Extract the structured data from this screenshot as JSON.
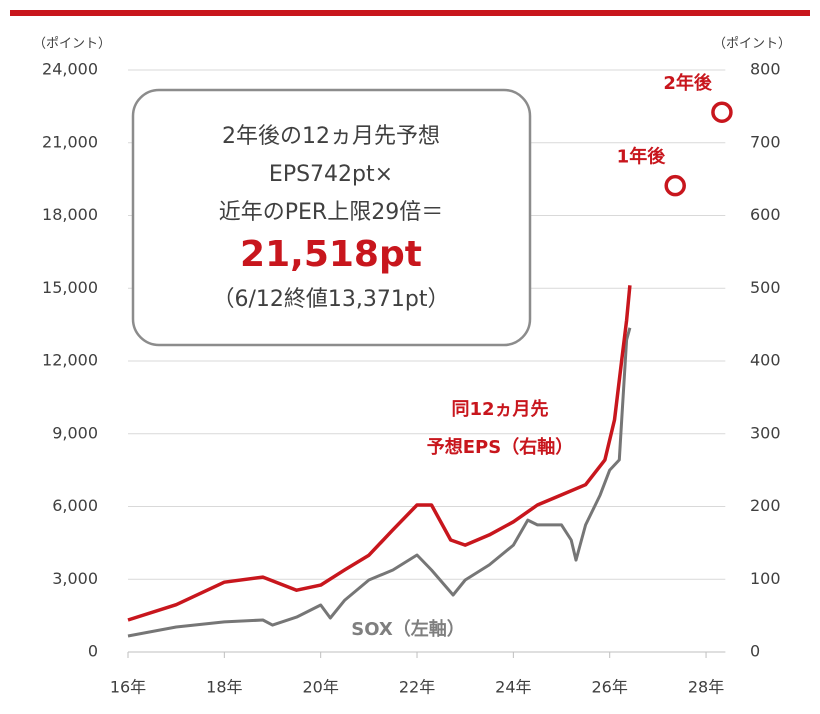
{
  "chart_data": {
    "type": "line",
    "y_unit": "（ポイント）",
    "y2_unit": "（ポイント）",
    "xlim": [
      16,
      28.4
    ],
    "xticks": [
      {
        "value": 16,
        "label": "16年"
      },
      {
        "value": 18,
        "label": "18年"
      },
      {
        "value": 20,
        "label": "20年"
      },
      {
        "value": 22,
        "label": "22年"
      },
      {
        "value": 24,
        "label": "24年"
      },
      {
        "value": 26,
        "label": "26年"
      },
      {
        "value": 28,
        "label": "28年"
      }
    ],
    "ylim": [
      0,
      24000
    ],
    "yticks": [
      0,
      {
        "value": 3000,
        "label": "3,000"
      },
      {
        "value": 6000,
        "label": "6,000"
      },
      {
        "value": 9000,
        "label": "9,000"
      },
      {
        "value": 12000,
        "label": "12,000"
      },
      {
        "value": 15000,
        "label": "15,000"
      },
      {
        "value": 18000,
        "label": "18,000"
      },
      {
        "value": 21000,
        "label": "21,000"
      },
      {
        "value": 24000,
        "label": "24,000"
      }
    ],
    "y2lim": [
      0,
      800
    ],
    "y2ticks": [
      0,
      100,
      200,
      300,
      400,
      500,
      600,
      700,
      800
    ],
    "grid": true,
    "series": [
      {
        "name": [
          "SOX（左軸）"
        ],
        "color": "#767676",
        "axis": "y",
        "x": [
          16.0,
          17.0,
          18.0,
          18.8,
          19.0,
          19.5,
          20.0,
          20.2,
          20.5,
          21.0,
          21.5,
          22.0,
          22.3,
          22.75,
          23.0,
          23.5,
          24.0,
          24.3,
          24.5,
          25.0,
          25.2,
          25.3,
          25.5,
          25.8,
          26.0,
          26.2,
          26.25,
          26.35,
          26.42
        ],
        "values": [
          660,
          1030,
          1240,
          1320,
          1110,
          1440,
          1940,
          1400,
          2140,
          2970,
          3380,
          4000,
          3380,
          2350,
          2970,
          3590,
          4410,
          5440,
          5240,
          5240,
          4620,
          3790,
          5240,
          6470,
          7500,
          7920,
          9570,
          12870,
          13371
        ]
      },
      {
        "name": [
          "同12ヵ月先",
          "予想EPS（右軸）"
        ],
        "color": "#c8161d",
        "axis": "y2",
        "x": [
          16.0,
          17.0,
          18.0,
          18.8,
          19.5,
          20.0,
          20.5,
          21.0,
          21.5,
          22.0,
          22.3,
          22.7,
          23.0,
          23.5,
          24.0,
          24.5,
          25.0,
          25.5,
          25.9,
          26.1,
          26.25,
          26.35,
          26.42
        ],
        "values": [
          44,
          65,
          96,
          103,
          85,
          92,
          113,
          133,
          168,
          202,
          202,
          154,
          147,
          161,
          179,
          202,
          216,
          230,
          264,
          319,
          401,
          456,
          504
        ]
      }
    ],
    "points": {
      "axis": "y2",
      "color": "#c8161d",
      "x": [
        27.36,
        28.33
      ],
      "values": [
        641,
        742
      ],
      "labels": [
        "1年後",
        "2年後"
      ]
    },
    "box": {
      "lines": [
        "2年後の12ヵ月先予想",
        "EPS742pt×",
        "近年のPER上限29倍＝"
      ],
      "highlight": "21,518pt",
      "note": "（6/12終値13,371pt）"
    }
  }
}
